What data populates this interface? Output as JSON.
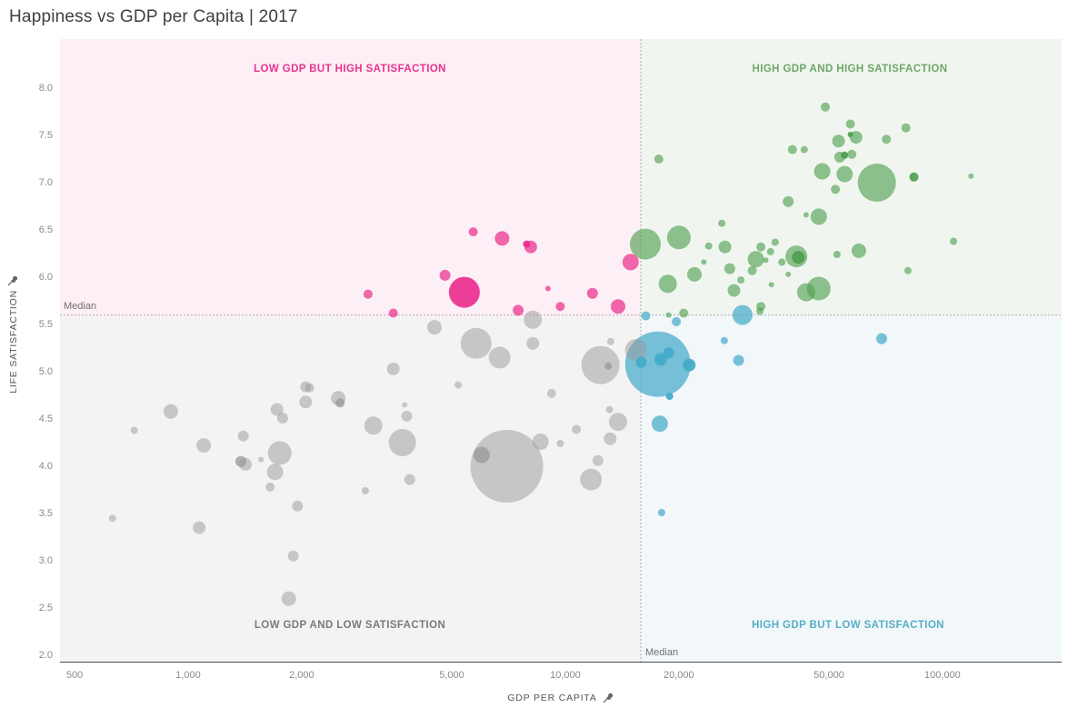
{
  "title": "Happiness vs GDP per Capita | 2017",
  "chart_data": {
    "type": "scatter",
    "title": "Happiness vs GDP per Capita | 2017",
    "xlabel": "GDP PER CAPITA",
    "ylabel": "LIFE SATISFACTION",
    "x_scale": "log",
    "x_range": [
      460,
      207000
    ],
    "y_range": [
      1.93,
      8.52
    ],
    "grid": false,
    "legend": "none",
    "x_ticks": [
      500,
      1000,
      2000,
      5000,
      10000,
      20000,
      50000,
      100000
    ],
    "x_tick_labels": [
      "500",
      "1,000",
      "2,000",
      "5,000",
      "10,000",
      "20,000",
      "50,000",
      "100,000"
    ],
    "y_ticks": [
      2.0,
      2.5,
      3.0,
      3.5,
      4.0,
      4.5,
      5.0,
      5.5,
      6.0,
      6.5,
      7.0,
      7.5,
      8.0
    ],
    "y_tick_labels": [
      "2.0",
      "2.5",
      "3.0",
      "3.5",
      "4.0",
      "4.5",
      "5.0",
      "5.5",
      "6.0",
      "6.5",
      "7.0",
      "7.5",
      "8.0"
    ],
    "median_label": "Median",
    "median_x_gdp": 15850,
    "median_y_satisfaction": 5.6,
    "median_line_color_h": "#cf9db6",
    "median_line_color_v": "#a9aeb2",
    "quadrants": [
      {
        "id": "low-gdp-high-sat",
        "label": "LOW GDP BUT HIGH SATISFACTION",
        "label_color": "#e8338f",
        "bg_color": "#fcEFf5"
      },
      {
        "id": "high-gdp-high-sat",
        "label": "HIGH GDP AND HIGH SATISFACTION",
        "label_color": "#6ca767",
        "bg_color": "#f0f6ef"
      },
      {
        "id": "low-gdp-low-sat",
        "label": "LOW GDP AND LOW SATISFACTION",
        "label_color": "#7a7a7a",
        "bg_color": "#f4f3f3"
      },
      {
        "id": "high-gdp-low-sat",
        "label": "HIGH GDP BUT LOW SATISFACTION",
        "label_color": "#56aec6",
        "bg_color": "#f2f7fa"
      }
    ],
    "point_format": [
      "gdp_per_capita",
      "life_satisfaction",
      "bubble_radius_px",
      "shade"
    ],
    "series": [
      {
        "name": "Low GDP but high satisfaction",
        "color": "#ec2f8e",
        "opacity": 0.72,
        "points": [
          [
            5700,
            6.48,
            5
          ],
          [
            6800,
            6.41,
            8
          ],
          [
            7900,
            6.35,
            4,
            "dark"
          ],
          [
            8100,
            6.32,
            7
          ],
          [
            4800,
            6.02,
            6
          ],
          [
            5400,
            5.84,
            17,
            "bright"
          ],
          [
            3000,
            5.82,
            5
          ],
          [
            3500,
            5.62,
            5
          ],
          [
            7500,
            5.65,
            6
          ],
          [
            9000,
            5.88,
            3
          ],
          [
            9700,
            5.69,
            5
          ],
          [
            11800,
            5.83,
            6
          ],
          [
            13800,
            5.69,
            8
          ],
          [
            14900,
            6.16,
            9
          ]
        ]
      },
      {
        "name": "High GDP and high satisfaction",
        "color": "#4d9d4d",
        "opacity": 0.62,
        "points": [
          [
            17700,
            7.25,
            5
          ],
          [
            48900,
            7.8,
            5
          ],
          [
            57000,
            7.62,
            5
          ],
          [
            59000,
            7.48,
            7
          ],
          [
            53000,
            7.44,
            7
          ],
          [
            57000,
            7.51,
            3,
            "dark"
          ],
          [
            71000,
            7.46,
            5
          ],
          [
            80000,
            7.58,
            5
          ],
          [
            40000,
            7.35,
            5
          ],
          [
            43000,
            7.35,
            4
          ],
          [
            55000,
            7.29,
            4,
            "dark"
          ],
          [
            57500,
            7.3,
            5
          ],
          [
            53400,
            7.27,
            6
          ],
          [
            48000,
            7.12,
            9
          ],
          [
            55000,
            7.09,
            9
          ],
          [
            67000,
            7.0,
            21
          ],
          [
            84000,
            7.06,
            5,
            "dark"
          ],
          [
            119000,
            7.07,
            3
          ],
          [
            52000,
            6.93,
            5
          ],
          [
            39000,
            6.8,
            6
          ],
          [
            47000,
            6.64,
            9
          ],
          [
            43500,
            6.66,
            3
          ],
          [
            26000,
            6.57,
            4
          ],
          [
            20000,
            6.42,
            13
          ],
          [
            16300,
            6.35,
            17
          ],
          [
            24000,
            6.33,
            4
          ],
          [
            26500,
            6.32,
            7
          ],
          [
            33000,
            6.32,
            5
          ],
          [
            36000,
            6.37,
            4
          ],
          [
            35000,
            6.27,
            4
          ],
          [
            32000,
            6.19,
            9
          ],
          [
            34000,
            6.18,
            3
          ],
          [
            37500,
            6.16,
            4
          ],
          [
            41000,
            6.22,
            12
          ],
          [
            41500,
            6.21,
            7,
            "dark"
          ],
          [
            52500,
            6.24,
            4
          ],
          [
            60000,
            6.28,
            8
          ],
          [
            107000,
            6.38,
            4
          ],
          [
            23300,
            6.16,
            3
          ],
          [
            22000,
            6.03,
            8
          ],
          [
            18700,
            5.93,
            10
          ],
          [
            27300,
            6.09,
            6
          ],
          [
            29200,
            5.97,
            4
          ],
          [
            31300,
            6.07,
            5
          ],
          [
            28000,
            5.86,
            7
          ],
          [
            35200,
            5.92,
            3
          ],
          [
            39000,
            6.03,
            3
          ],
          [
            43500,
            5.84,
            10
          ],
          [
            47000,
            5.88,
            13
          ],
          [
            81000,
            6.07,
            4
          ],
          [
            33000,
            5.69,
            5
          ],
          [
            20600,
            5.62,
            5
          ],
          [
            18800,
            5.6,
            3
          ],
          [
            32800,
            5.64,
            4
          ]
        ]
      },
      {
        "name": "Low GDP and low satisfaction",
        "color": "#9a9a9a",
        "opacity": 0.5,
        "points": [
          [
            4500,
            5.47,
            8
          ],
          [
            5800,
            5.3,
            17
          ],
          [
            6700,
            5.15,
            12
          ],
          [
            8200,
            5.55,
            10
          ],
          [
            8200,
            5.3,
            7
          ],
          [
            3500,
            5.03,
            7
          ],
          [
            5200,
            4.86,
            4
          ],
          [
            9200,
            4.77,
            5
          ],
          [
            12400,
            5.07,
            21
          ],
          [
            13000,
            5.06,
            4,
            "dark"
          ],
          [
            13200,
            5.32,
            4
          ],
          [
            15400,
            5.23,
            12
          ],
          [
            3750,
            4.65,
            3
          ],
          [
            3800,
            4.53,
            6
          ],
          [
            3100,
            4.43,
            10
          ],
          [
            3700,
            4.25,
            15
          ],
          [
            8600,
            4.26,
            9
          ],
          [
            9700,
            4.24,
            4
          ],
          [
            10700,
            4.39,
            5
          ],
          [
            13100,
            4.6,
            4
          ],
          [
            13800,
            4.47,
            10
          ],
          [
            13150,
            4.29,
            7
          ],
          [
            7000,
            4.0,
            40
          ],
          [
            6000,
            4.12,
            9,
            "dark"
          ],
          [
            12200,
            4.06,
            6
          ],
          [
            11700,
            3.86,
            12
          ],
          [
            3870,
            3.86,
            6
          ],
          [
            900,
            4.58,
            8
          ],
          [
            720,
            4.38,
            4
          ],
          [
            1100,
            4.22,
            8
          ],
          [
            1400,
            4.32,
            6
          ],
          [
            1380,
            4.05,
            6,
            "dark"
          ],
          [
            1420,
            4.02,
            7
          ],
          [
            1560,
            4.07,
            3
          ],
          [
            1750,
            4.14,
            13
          ],
          [
            1700,
            3.94,
            9
          ],
          [
            1650,
            3.78,
            5
          ],
          [
            1720,
            4.6,
            7
          ],
          [
            1780,
            4.51,
            6
          ],
          [
            2050,
            4.84,
            6
          ],
          [
            2100,
            4.83,
            5
          ],
          [
            2050,
            4.68,
            7
          ],
          [
            2500,
            4.72,
            8
          ],
          [
            2530,
            4.67,
            5,
            "dark"
          ],
          [
            1950,
            3.58,
            6
          ],
          [
            630,
            3.45,
            4
          ],
          [
            1070,
            3.35,
            7
          ],
          [
            1900,
            3.05,
            6
          ],
          [
            1850,
            2.6,
            8
          ],
          [
            2950,
            3.74,
            4
          ]
        ]
      },
      {
        "name": "High GDP but low satisfaction",
        "color": "#45abc9",
        "opacity": 0.72,
        "points": [
          [
            16350,
            5.59,
            5
          ],
          [
            19700,
            5.53,
            5
          ],
          [
            29500,
            5.6,
            11
          ],
          [
            26400,
            5.33,
            4
          ],
          [
            28800,
            5.12,
            6
          ],
          [
            69000,
            5.35,
            6
          ],
          [
            17600,
            5.08,
            36
          ],
          [
            18800,
            5.2,
            6,
            "dark"
          ],
          [
            17900,
            5.13,
            7,
            "dark"
          ],
          [
            15900,
            5.1,
            6,
            "dark"
          ],
          [
            21300,
            5.07,
            7,
            "dark"
          ],
          [
            18900,
            4.74,
            4,
            "dark"
          ],
          [
            17800,
            4.45,
            9
          ],
          [
            18000,
            3.51,
            4
          ]
        ]
      }
    ]
  }
}
